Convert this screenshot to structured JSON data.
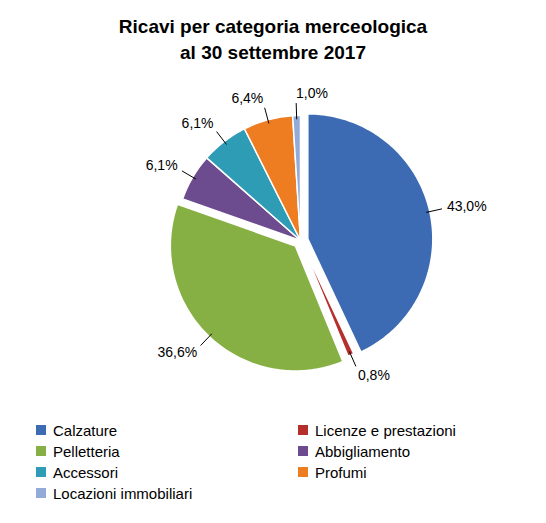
{
  "chart_data": {
    "type": "pie",
    "title": "Ricavi per categoria merceologica\nal 30 settembre 2017",
    "categories": [
      "Calzature",
      "Licenze e prestazioni",
      "Pelletteria",
      "Abbigliamento",
      "Accessori",
      "Profumi",
      "Locazioni immobiliari"
    ],
    "values": [
      43.0,
      0.8,
      36.6,
      6.1,
      6.1,
      6.4,
      1.0
    ],
    "value_labels": [
      "43,0%",
      "0,8%",
      "36,6%",
      "6,1%",
      "6,1%",
      "6,4%",
      "1,0%"
    ],
    "colors": [
      "#3d6bb3",
      "#b5302d",
      "#86b043",
      "#6c4b8f",
      "#2f9cb6",
      "#ee7d22",
      "#93abd9"
    ],
    "data_labels": true,
    "legend": "bottom"
  }
}
